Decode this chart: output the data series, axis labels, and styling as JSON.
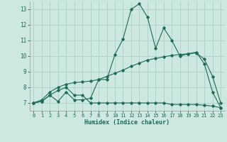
{
  "xlabel": "Humidex (Indice chaleur)",
  "bg_color": "#cce8e0",
  "grid_color": "#b0d4cc",
  "line_color": "#1a6b5a",
  "xlim": [
    -0.5,
    23.5
  ],
  "ylim": [
    6.5,
    13.5
  ],
  "xticks": [
    0,
    1,
    2,
    3,
    4,
    5,
    6,
    7,
    8,
    9,
    10,
    11,
    12,
    13,
    14,
    15,
    16,
    17,
    18,
    19,
    20,
    21,
    22,
    23
  ],
  "yticks": [
    7,
    8,
    9,
    10,
    11,
    12,
    13
  ],
  "line1_x": [
    0,
    1,
    2,
    3,
    4,
    5,
    6,
    7,
    8,
    9,
    10,
    11,
    12,
    13,
    14,
    15,
    16,
    17,
    18,
    19,
    20,
    21,
    22,
    23
  ],
  "line1_y": [
    7.0,
    7.1,
    7.5,
    7.1,
    7.7,
    7.2,
    7.2,
    7.3,
    8.5,
    8.5,
    10.1,
    11.1,
    13.0,
    13.35,
    12.5,
    10.5,
    11.8,
    11.0,
    10.0,
    10.15,
    10.25,
    9.5,
    7.7,
    6.7
  ],
  "line2_x": [
    0,
    1,
    2,
    3,
    4,
    5,
    6,
    7,
    8,
    9,
    10,
    11,
    12,
    13,
    14,
    15,
    16,
    17,
    18,
    19,
    20,
    21,
    22,
    23
  ],
  "line2_y": [
    7.0,
    7.1,
    7.5,
    7.8,
    8.0,
    7.5,
    7.5,
    7.0,
    7.0,
    7.0,
    7.0,
    7.0,
    7.0,
    7.0,
    7.0,
    7.0,
    7.0,
    6.9,
    6.9,
    6.9,
    6.9,
    6.85,
    6.8,
    6.7
  ],
  "line3_x": [
    0,
    1,
    2,
    3,
    4,
    5,
    6,
    7,
    8,
    9,
    10,
    11,
    12,
    13,
    14,
    15,
    16,
    17,
    18,
    19,
    20,
    21,
    22,
    23
  ],
  "line3_y": [
    7.0,
    7.2,
    7.7,
    8.0,
    8.2,
    8.3,
    8.35,
    8.4,
    8.5,
    8.7,
    8.9,
    9.1,
    9.35,
    9.55,
    9.75,
    9.85,
    9.95,
    10.05,
    10.1,
    10.15,
    10.2,
    9.8,
    8.7,
    7.0
  ]
}
